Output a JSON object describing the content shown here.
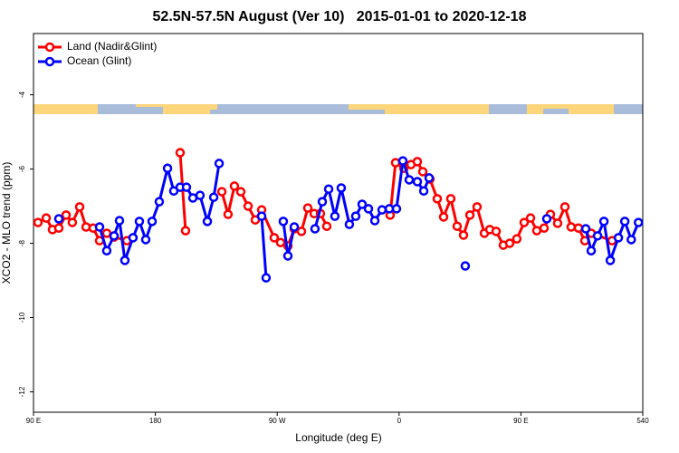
{
  "chart_data": {
    "type": "line",
    "title": "52.5N-57.5N August (Ver 10)   2015-01-01 to 2020-12-18",
    "x_label": "Longitude (deg E)",
    "y_label": "XCO2 - MLO trend (ppm)",
    "xlim": [
      90,
      540
    ],
    "ylim": [
      -12.55,
      -2.35
    ],
    "xticks": [
      {
        "value": 90,
        "label": "90 E"
      },
      180,
      {
        "value": 270,
        "label": "90 W"
      },
      {
        "value": 360,
        "label": "0"
      },
      {
        "value": 450,
        "label": "90 E"
      },
      540
    ],
    "yticks": [
      -4,
      -6,
      -8,
      -10,
      -12
    ],
    "grid": false,
    "legend": "upper left",
    "series": [
      {
        "name": "Land (Nadir&Glint)",
        "color": "#ff0000",
        "x": [
          93.3,
          99.4,
          104.0,
          108.7,
          114.1,
          118.7,
          124.1,
          128.8,
          134.1,
          138.8,
          144.1,
          149.5,
          158.9,
          null,
          198.3,
          202.3,
          null,
          229.1,
          233.7,
          238.4,
          243.1,
          248.5,
          253.8,
          258.5,
          267.8,
          272.5,
          277.9,
          282.6,
          287.9,
          292.6,
          297.3,
          301.9,
          306.6,
          null,
          353.4,
          357.4,
          363.5,
          368.8,
          373.5,
          377.5,
          382.8,
          388.2,
          392.9,
          398.2,
          402.9,
          407.6,
          412.3,
          417.6,
          423.0,
          427.0,
          431.7,
          437.0,
          441.7,
          447.0,
          452.4,
          457.1,
          461.7,
          467.1,
          471.8,
          477.1,
          482.5,
          487.1,
          492.5,
          497.2,
          501.9,
          517.3
        ],
        "values": [
          -7.44,
          -7.32,
          -7.63,
          -7.59,
          -7.24,
          -7.44,
          -7.02,
          -7.56,
          -7.59,
          -7.93,
          -7.73,
          -7.83,
          -7.93,
          null,
          -5.56,
          -7.66,
          null,
          -6.61,
          -7.22,
          -6.46,
          -6.61,
          -7.0,
          -7.37,
          -7.1,
          -7.85,
          -7.98,
          -8.07,
          -7.61,
          -7.68,
          -7.05,
          -7.2,
          -7.2,
          -7.54,
          null,
          -7.24,
          -5.83,
          -5.98,
          -5.88,
          -5.8,
          -6.07,
          -6.27,
          -6.8,
          -7.29,
          -6.8,
          -7.54,
          -7.78,
          -7.24,
          -7.02,
          -7.73,
          -7.63,
          -7.68,
          -8.05,
          -8.0,
          -7.88,
          -7.44,
          -7.32,
          -7.66,
          -7.59,
          -7.22,
          -7.46,
          -7.02,
          -7.56,
          -7.59,
          -7.93,
          -7.73,
          -7.93
        ]
      },
      {
        "name": "Ocean (Glint)",
        "color": "#0000ff",
        "x": [
          108.7,
          null,
          138.8,
          144.1,
          149.5,
          153.5,
          157.5,
          163.5,
          168.2,
          172.9,
          177.6,
          182.9,
          189.0,
          193.6,
          198.3,
          203.0,
          207.7,
          213.0,
          218.4,
          223.1,
          227.1,
          null,
          258.5,
          261.8,
          null,
          274.5,
          277.9,
          282.6,
          null,
          297.9,
          303.3,
          308.0,
          312.6,
          317.3,
          323.3,
          328.0,
          332.7,
          337.4,
          342.1,
          347.4,
          352.8,
          358.1,
          362.8,
          367.5,
          373.5,
          378.2,
          382.2,
          null,
          408.9,
          null,
          469.1,
          null,
          497.9,
          501.9,
          506.6,
          511.3,
          516.0,
          522.0,
          526.7,
          531.5,
          536.8
        ],
        "values": [
          -7.34,
          null,
          -7.56,
          -8.2,
          -7.8,
          -7.39,
          -8.46,
          -7.85,
          -7.41,
          -7.9,
          -7.41,
          -6.88,
          -5.98,
          -6.59,
          -6.49,
          -6.49,
          -6.78,
          -6.71,
          -7.41,
          -6.76,
          -5.85,
          null,
          -7.27,
          -8.93,
          null,
          -7.41,
          -8.34,
          -7.56,
          null,
          -7.61,
          -6.88,
          -6.54,
          -7.27,
          -6.51,
          -7.49,
          -7.27,
          -6.95,
          -7.07,
          -7.39,
          -7.1,
          -7.07,
          -7.07,
          -5.78,
          -6.29,
          -6.34,
          -6.59,
          -6.24,
          null,
          -8.61,
          null,
          -7.34,
          null,
          -7.61,
          -8.2,
          -7.8,
          -7.41,
          -8.46,
          -7.85,
          -7.41,
          -7.9,
          -7.44
        ]
      }
    ]
  }
}
